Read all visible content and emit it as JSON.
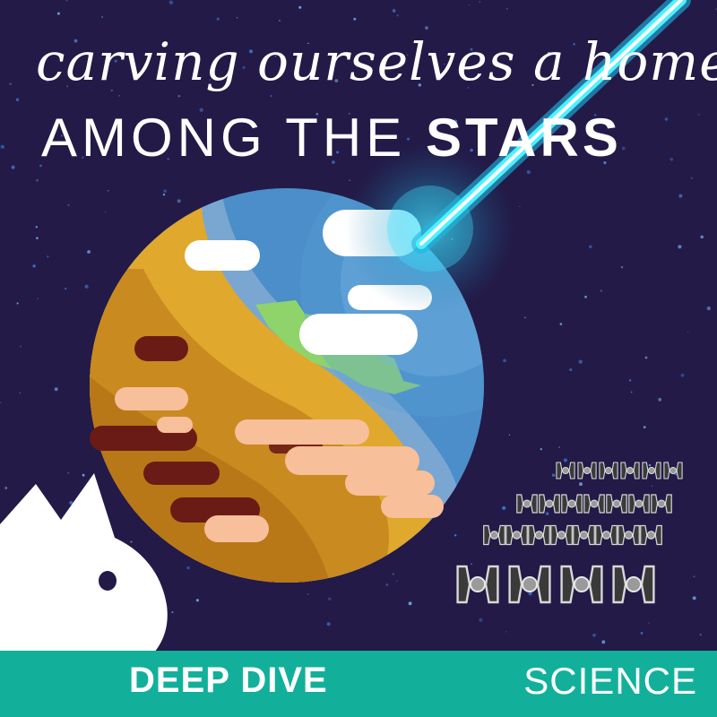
{
  "headline": {
    "script_line": "carving ourselves a home",
    "caps_line_prefix": "AMONG THE",
    "caps_line_emphasis": "STARS"
  },
  "footer": {
    "left_label": "DEEP DIVE",
    "right_label": "SCIENCE"
  },
  "colors": {
    "space_background": "#231a47",
    "footer_bar": "#12b09a",
    "ocean": "#4b8ec9",
    "land": "#c98a20",
    "beam": "#2fd6ff"
  },
  "icons": [
    "planet-icon",
    "laser-beam-icon",
    "star-fighter-icon",
    "cat-silhouette-icon"
  ],
  "fleet": {
    "rows": [
      6,
      7,
      8,
      4
    ]
  }
}
